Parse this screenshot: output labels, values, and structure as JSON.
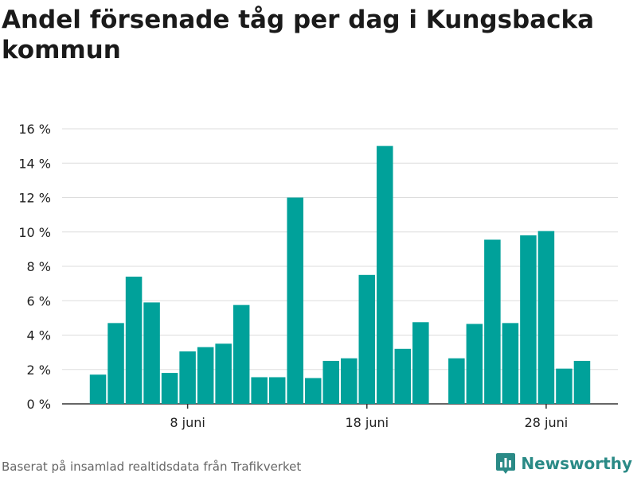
{
  "title": "Andel försenade tåg per dag i Kungsbacka kommun",
  "source": "Baserat på insamlad realtidsdata från Trafikverket",
  "brand": "Newsworthy",
  "colors": {
    "bar": "#00a19a",
    "grid": "#dddddd",
    "axis": "#333333",
    "brand": "#2a8a86"
  },
  "chart_data": {
    "type": "bar",
    "title": "Andel försenade tåg per dag i Kungsbacka kommun",
    "ylabel": "",
    "xlabel": "",
    "ylim": [
      0,
      16
    ],
    "grid": true,
    "y_ticks": [
      0,
      2,
      4,
      6,
      8,
      10,
      12,
      14,
      16
    ],
    "y_tick_labels": [
      "0 %",
      "2 %",
      "4 %",
      "6 %",
      "8 %",
      "10 %",
      "12 %",
      "14 %",
      "16 %"
    ],
    "x_domain": [
      1,
      32
    ],
    "x_ticks": [
      {
        "x": 8,
        "label": "8 juni"
      },
      {
        "x": 18,
        "label": "18 juni"
      },
      {
        "x": 28,
        "label": "28 juni"
      }
    ],
    "x": [
      3,
      4,
      5,
      6,
      7,
      8,
      9,
      10,
      11,
      12,
      13,
      14,
      15,
      16,
      17,
      18,
      19,
      20,
      21,
      23,
      24,
      25,
      26,
      27,
      28,
      29,
      30
    ],
    "values": [
      1.7,
      4.7,
      7.4,
      5.9,
      1.8,
      3.05,
      3.3,
      3.5,
      5.75,
      1.55,
      1.55,
      12.0,
      1.5,
      2.5,
      2.65,
      7.5,
      15.0,
      3.2,
      4.75,
      2.65,
      4.65,
      9.55,
      4.7,
      9.8,
      10.05,
      2.05,
      2.5
    ]
  }
}
